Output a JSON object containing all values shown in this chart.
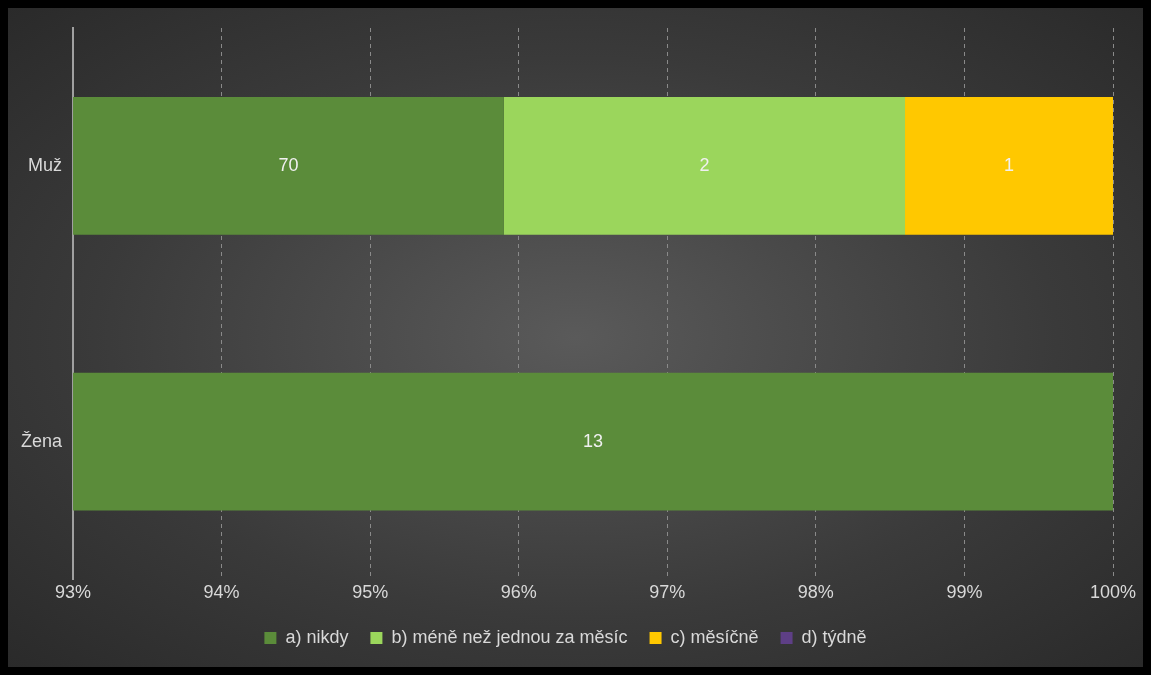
{
  "chart_data": {
    "type": "bar",
    "orientation": "horizontal",
    "categories": [
      "Muž",
      "Žena"
    ],
    "series": [
      {
        "name": "a) nikdy",
        "color": "#5b8c3a",
        "values": [
          95.9,
          100
        ],
        "base": [
          0,
          0
        ]
      },
      {
        "name": "b) méně než jednou za měsíc",
        "color": "#9bd65c",
        "values": [
          2.7,
          null
        ],
        "base": [
          95.9,
          null
        ]
      },
      {
        "name": "c) měsíčně",
        "color": "#ffc800",
        "values": [
          1.4,
          null
        ],
        "base": [
          98.6,
          null
        ]
      },
      {
        "name": "d) týdně",
        "color": "#5e3f86",
        "values": [
          null,
          null
        ]
      }
    ],
    "annotations": [
      "70",
      "2",
      "1",
      "13"
    ],
    "xlim": [
      93,
      100
    ],
    "xticks": [
      {
        "value": 93,
        "label": "93%"
      },
      {
        "value": 94,
        "label": "94%"
      },
      {
        "value": 95,
        "label": "95%"
      },
      {
        "value": 96,
        "label": "96%"
      },
      {
        "value": 97,
        "label": "97%"
      },
      {
        "value": 98,
        "label": "98%"
      },
      {
        "value": 99,
        "label": "99%"
      },
      {
        "value": 100,
        "label": "100%"
      }
    ],
    "grid": "x",
    "legend": "bottom"
  }
}
